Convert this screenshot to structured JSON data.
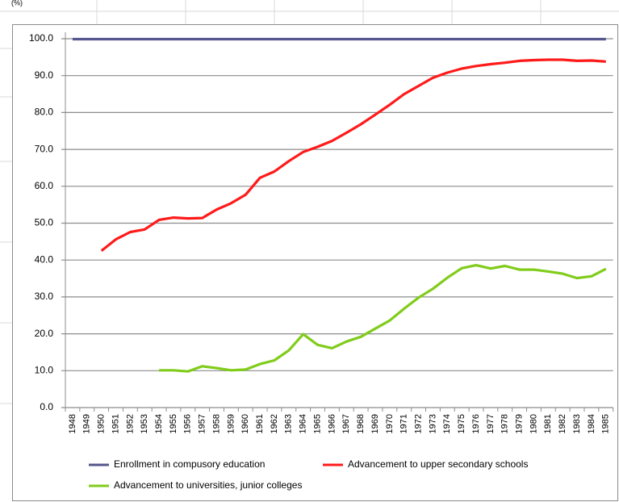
{
  "chart_data": {
    "type": "line",
    "y_label": "(%)",
    "categories": [
      "1948",
      "1949",
      "1950",
      "1951",
      "1952",
      "1953",
      "1954",
      "1955",
      "1956",
      "1957",
      "1958",
      "1959",
      "1960",
      "1961",
      "1962",
      "1963",
      "1964",
      "1965",
      "1966",
      "1967",
      "1968",
      "1969",
      "1970",
      "1971",
      "1972",
      "1973",
      "1974",
      "1975",
      "1976",
      "1977",
      "1978",
      "1979",
      "1980",
      "1981",
      "1982",
      "1983",
      "1984",
      "1985"
    ],
    "series": [
      {
        "name": "Enrollment in compusory education",
        "color": "#55558f",
        "values": [
          99.9,
          99.9,
          99.9,
          99.9,
          99.9,
          99.9,
          99.9,
          99.9,
          99.9,
          99.9,
          99.9,
          99.9,
          99.9,
          99.9,
          99.9,
          99.9,
          99.9,
          99.9,
          99.9,
          99.9,
          99.9,
          99.9,
          99.9,
          99.9,
          99.9,
          99.9,
          99.9,
          99.9,
          99.9,
          99.9,
          99.9,
          99.9,
          99.9,
          99.9,
          99.9,
          99.9,
          99.9,
          99.9
        ]
      },
      {
        "name": "Advancement to upper secondary schools",
        "color": "#ff1a1a",
        "values": [
          null,
          null,
          42.5,
          45.6,
          47.6,
          48.3,
          50.9,
          51.5,
          51.3,
          51.4,
          53.7,
          55.4,
          57.7,
          62.3,
          64.0,
          66.8,
          69.3,
          70.7,
          72.3,
          74.5,
          76.8,
          79.4,
          82.1,
          85.0,
          87.2,
          89.4,
          90.8,
          91.9,
          92.6,
          93.1,
          93.5,
          94.0,
          94.2,
          94.3,
          94.3,
          94.0,
          94.1,
          93.8
        ]
      },
      {
        "name": "Advancement to universities, junior colleges",
        "color": "#80cc1a",
        "values": [
          null,
          null,
          null,
          null,
          null,
          null,
          10.1,
          10.1,
          9.8,
          11.2,
          10.7,
          10.1,
          10.3,
          11.8,
          12.8,
          15.5,
          19.9,
          17.0,
          16.1,
          17.9,
          19.2,
          21.4,
          23.6,
          26.8,
          29.8,
          32.2,
          35.2,
          37.8,
          38.6,
          37.7,
          38.4,
          37.4,
          37.4,
          36.9,
          36.3,
          35.1,
          35.6,
          37.6
        ]
      }
    ],
    "ylim": [
      0,
      100
    ],
    "yticks": [
      {
        "value": 0,
        "label": "0.0"
      },
      {
        "value": 10,
        "label": "10.0"
      },
      {
        "value": 20,
        "label": "20.0"
      },
      {
        "value": 30,
        "label": "30.0"
      },
      {
        "value": 40,
        "label": "40.0"
      },
      {
        "value": 50,
        "label": "50.0"
      },
      {
        "value": 60,
        "label": "60.0"
      },
      {
        "value": 70,
        "label": "70.0"
      },
      {
        "value": 80,
        "label": "80.0"
      },
      {
        "value": 90,
        "label": "90.0"
      },
      {
        "value": 100,
        "label": "100.0"
      }
    ],
    "grid": true,
    "legend": "bottom"
  }
}
